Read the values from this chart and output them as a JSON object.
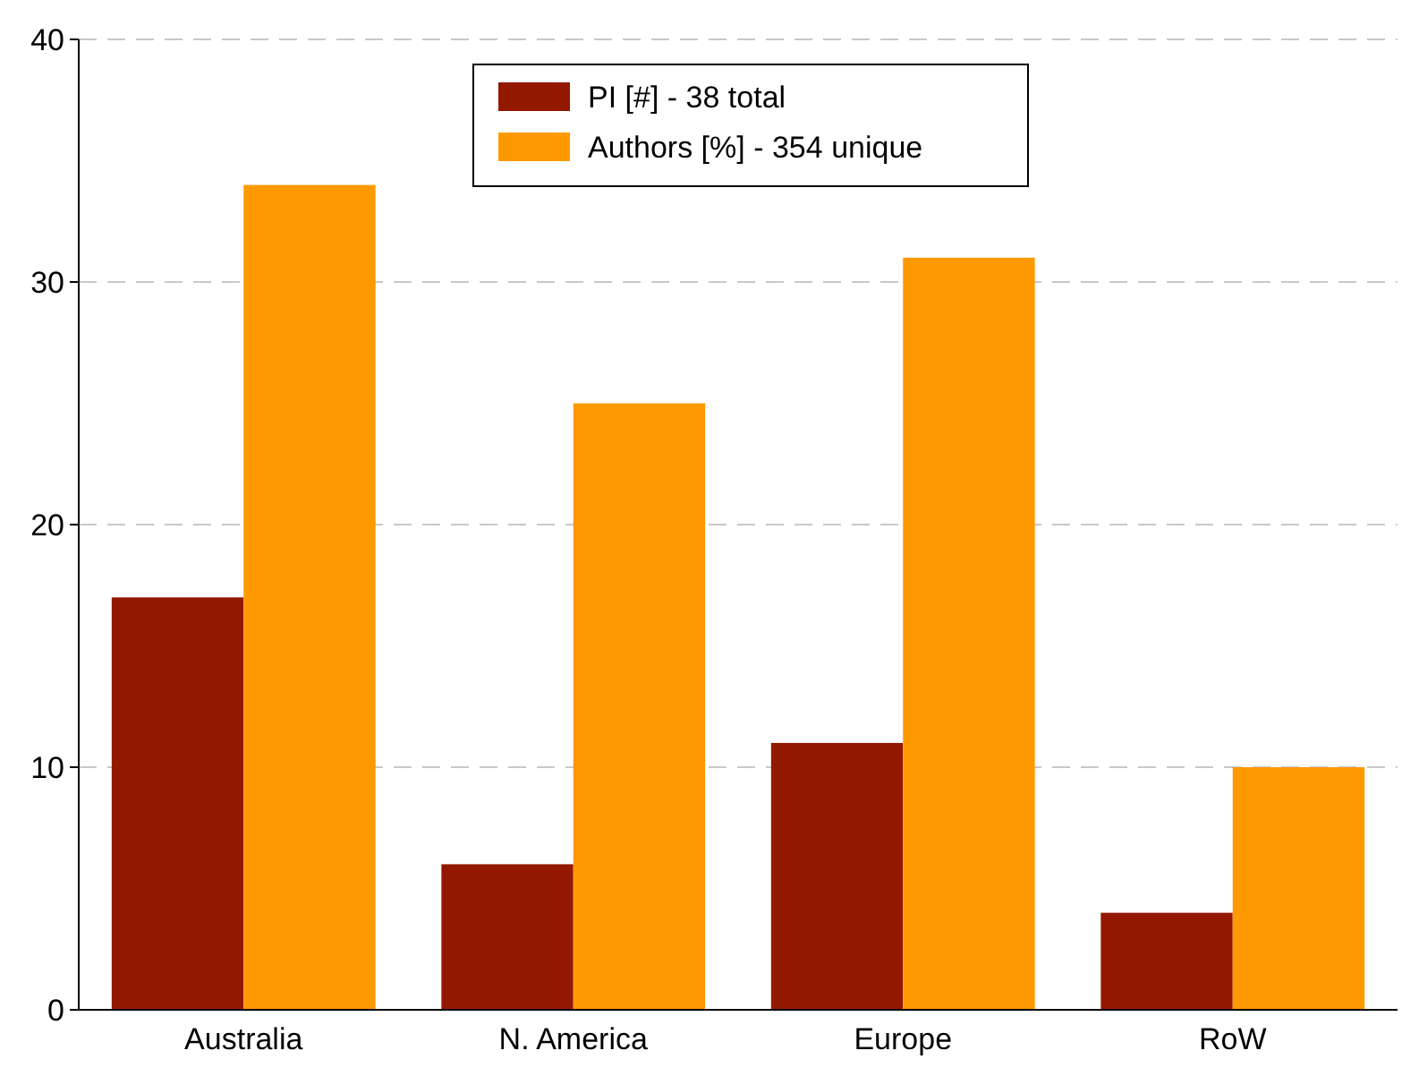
{
  "chart_data": {
    "type": "bar",
    "categories": [
      "Australia",
      "N. America",
      "Europe",
      "RoW"
    ],
    "series": [
      {
        "name": "PI [#] - 38 total",
        "color": "#921800",
        "values": [
          17,
          6,
          11,
          4
        ]
      },
      {
        "name": "Authors [%] - 354 unique",
        "color": "#ff9900",
        "values": [
          34,
          25,
          31,
          10
        ]
      }
    ],
    "ylim": [
      0,
      40
    ],
    "yticks": [
      0,
      10,
      20,
      30,
      40
    ],
    "grid": "y",
    "legend": "top"
  }
}
